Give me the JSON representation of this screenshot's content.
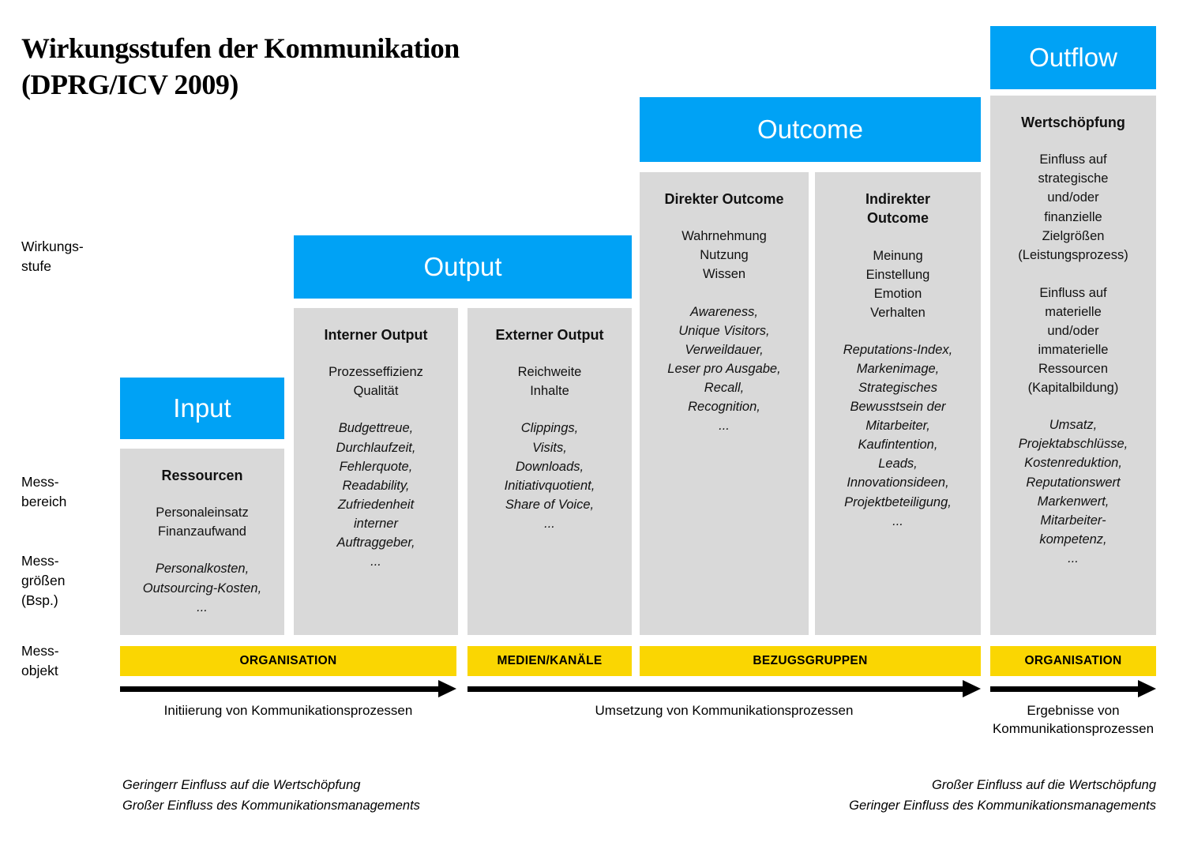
{
  "title": "Wirkungsstufen der Kommunikation\n(DPRG/ICV 2009)",
  "row_labels": {
    "wirkungsstufe": "Wirkungs-\nstufe",
    "messbereich": "Mess-\nbereich",
    "messgroessen": "Mess-\ngrößen\n(Bsp.)",
    "messobjekt": "Mess-\nobjekt"
  },
  "stages": {
    "input": {
      "header": "Input",
      "box": {
        "title": "Ressourcen",
        "body": "Personaleinsatz\nFinanzaufwand",
        "examples": "Personalkosten,\nOutsourcing-Kosten,\n..."
      }
    },
    "output": {
      "header": "Output",
      "internal": {
        "title": "Interner Output",
        "body": "Prozesseffizienz\nQualität",
        "examples": "Budgettreue,\nDurchlaufzeit,\nFehlerquote,\nReadability,\nZufriedenheit\ninterner\nAuftraggeber,\n..."
      },
      "external": {
        "title": "Externer Output",
        "body": "Reichweite\nInhalte",
        "examples": "Clippings,\nVisits,\nDownloads,\nInitiativquotient,\nShare of Voice,\n..."
      }
    },
    "outcome": {
      "header": "Outcome",
      "direct": {
        "title": "Direkter Outcome",
        "body": "Wahrnehmung\nNutzung\nWissen",
        "examples": "Awareness,\nUnique Visitors,\nVerweildauer,\nLeser pro Ausgabe,\nRecall,\nRecognition,\n..."
      },
      "indirect": {
        "title": "Indirekter\nOutcome",
        "body": "Meinung\nEinstellung\nEmotion\nVerhalten",
        "examples": "Reputations-Index,\nMarkenimage,\nStrategisches\nBewusstsein der\nMitarbeiter,\nKaufintention,\nLeads,\nInnovationsideen,\nProjektbeteiligung,\n..."
      }
    },
    "outflow": {
      "header": "Outflow",
      "box": {
        "title": "Wertschöpfung",
        "body": "Einfluss auf\nstrategische\nund/oder\nfinanzielle\nZielgrößen\n(Leistungsprozess)\n\nEinfluss auf\nmaterielle\nund/oder\nimmaterielle\nRessourcen\n(Kapitalbildung)",
        "examples": "Umsatz,\nProjektabschlüsse,\nKostenreduktion,\nReputationswert\nMarkenwert,\nMitarbeiter-\nkompetenz,\n..."
      }
    }
  },
  "measurement_objects": {
    "organisation_1": "ORGANISATION",
    "medien_kanaele": "MEDIEN/KANÄLE",
    "bezugsgruppen": "BEZUGSGRUPPEN",
    "organisation_2": "ORGANISATION"
  },
  "process_arrows": {
    "initiation": "Initiierung von Kommunikationsprozessen",
    "implementation": "Umsetzung von Kommunikationsprozessen",
    "results": "Ergebnisse von\nKommunikationsprozessen"
  },
  "footnotes": {
    "left": "Geringerr Einfluss auf die Wertschöpfung\nGroßer Einfluss des Kommunikationsmanagements",
    "right": "Großer Einfluss auf die Wertschöpfung\nGeringer Einfluss des Kommunikationsmanagements"
  },
  "colors": {
    "accent_blue": "#00A2F5",
    "accent_yellow": "#FAD602",
    "box_gray": "#D9D9D9"
  }
}
